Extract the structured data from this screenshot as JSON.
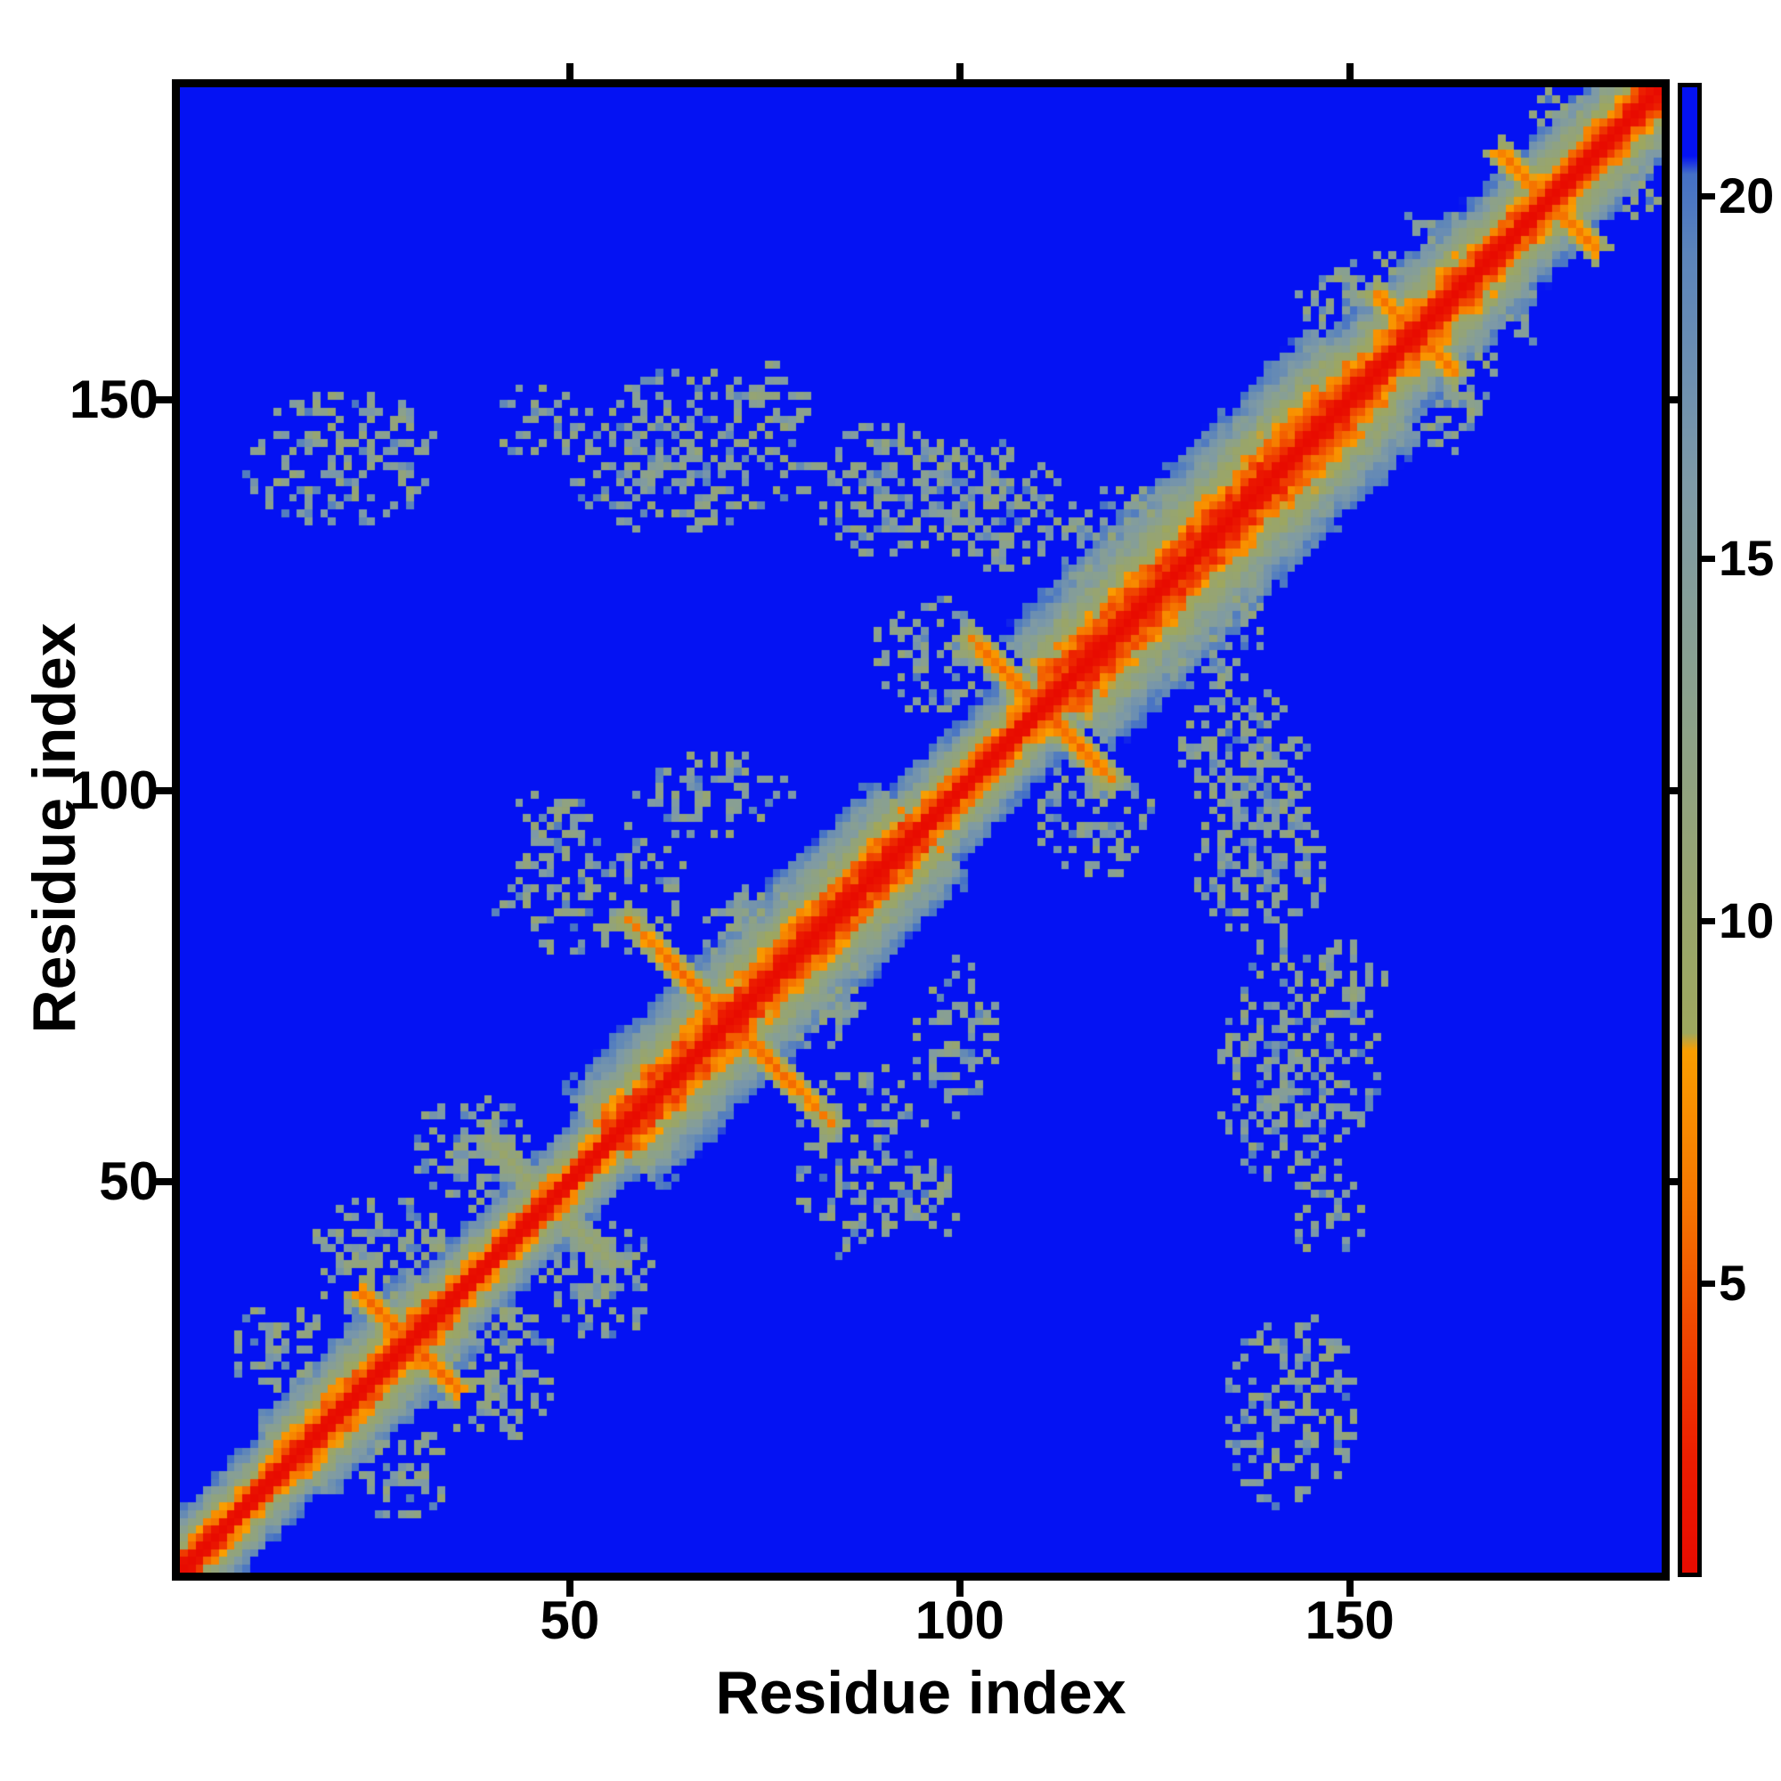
{
  "chart_data": {
    "type": "heatmap",
    "title": "",
    "xlabel": "Residue index",
    "ylabel": "Residue index",
    "x_range": [
      0,
      190
    ],
    "y_range": [
      0,
      190
    ],
    "x_ticks": [
      50,
      100,
      150
    ],
    "y_ticks": [
      50,
      100,
      150
    ],
    "grid": false,
    "legend_position": "none",
    "colorbar": {
      "min": 1.0,
      "max": 21.5,
      "ticks": [
        5,
        10,
        15,
        20
      ],
      "position": "right"
    },
    "colormap_stops": [
      [
        0.0,
        "#e80b00"
      ],
      [
        2.5,
        "#ec1c00"
      ],
      [
        4.2,
        "#f04300"
      ],
      [
        6.0,
        "#f57300"
      ],
      [
        8.2,
        "#fa9e00"
      ],
      [
        8.45,
        "#9ea75e"
      ],
      [
        10.0,
        "#99a56b"
      ],
      [
        13.0,
        "#8ba18c"
      ],
      [
        16.0,
        "#7e9aa6"
      ],
      [
        19.2,
        "#5b84bb"
      ],
      [
        20.3,
        "#4470c6"
      ],
      [
        20.55,
        "#0412f3"
      ],
      [
        21.5,
        "#0412f3"
      ]
    ],
    "background_color": "#0412f3",
    "matrix": {
      "n": 190,
      "symmetric": true,
      "diagonal_value": 0,
      "background_value": 21.5,
      "seed": 7,
      "diagonal_band_segments": [
        {
          "from": 0,
          "to": 14,
          "halfwidth": 7
        },
        {
          "from": 14,
          "to": 34,
          "halfwidth": 9
        },
        {
          "from": 34,
          "to": 55,
          "halfwidth": 7
        },
        {
          "from": 55,
          "to": 95,
          "halfwidth": 11
        },
        {
          "from": 95,
          "to": 112,
          "halfwidth": 8
        },
        {
          "from": 112,
          "to": 152,
          "halfwidth": 13
        },
        {
          "from": 152,
          "to": 168,
          "halfwidth": 10
        },
        {
          "from": 168,
          "to": 190,
          "halfwidth": 9
        }
      ],
      "antidiagonal_features": [
        {
          "center": 29,
          "halfwidth": 6,
          "value": 4.6
        },
        {
          "center": 47,
          "halfwidth": 8,
          "value": 8.8
        },
        {
          "center": 70,
          "halfwidth": 13,
          "value": 4.3
        },
        {
          "center": 110,
          "halfwidth": 9,
          "value": 4.5
        },
        {
          "center": 158,
          "halfwidth": 5,
          "value": 5.2
        },
        {
          "center": 175,
          "halfwidth": 6,
          "value": 4.8
        }
      ],
      "contact_clusters": [
        {
          "i": 20,
          "j": 142,
          "rx": 13,
          "ry": 9,
          "density": 0.42
        },
        {
          "i": 45,
          "j": 147,
          "rx": 6,
          "ry": 5,
          "density": 0.3
        },
        {
          "i": 64,
          "j": 143,
          "rx": 16,
          "ry": 11,
          "density": 0.45
        },
        {
          "i": 75,
          "j": 150,
          "rx": 6,
          "ry": 5,
          "density": 0.35
        },
        {
          "i": 90,
          "j": 138,
          "rx": 11,
          "ry": 9,
          "density": 0.45
        },
        {
          "i": 104,
          "j": 136,
          "rx": 9,
          "ry": 9,
          "density": 0.5
        },
        {
          "i": 121,
          "j": 131,
          "rx": 9,
          "ry": 8,
          "density": 0.55
        },
        {
          "i": 12,
          "j": 28,
          "rx": 7,
          "ry": 6,
          "density": 0.45
        },
        {
          "i": 25,
          "j": 40,
          "rx": 9,
          "ry": 8,
          "density": 0.5
        },
        {
          "i": 37,
          "j": 53,
          "rx": 8,
          "ry": 8,
          "density": 0.5
        },
        {
          "i": 52,
          "j": 87,
          "rx": 13,
          "ry": 9,
          "density": 0.35
        },
        {
          "i": 75,
          "j": 81,
          "rx": 9,
          "ry": 7,
          "density": 0.55
        },
        {
          "i": 47,
          "j": 95,
          "rx": 5,
          "ry": 5,
          "density": 0.45
        },
        {
          "i": 68,
          "j": 99,
          "rx": 10,
          "ry": 6,
          "density": 0.4
        },
        {
          "i": 96,
          "j": 117,
          "rx": 8,
          "ry": 8,
          "density": 0.4
        },
        {
          "i": 150,
          "j": 163,
          "rx": 7,
          "ry": 6,
          "density": 0.45
        },
        {
          "i": 160,
          "j": 170,
          "rx": 6,
          "ry": 5,
          "density": 0.4
        },
        {
          "i": 178,
          "j": 186,
          "rx": 5,
          "ry": 4,
          "density": 0.5
        }
      ]
    }
  }
}
